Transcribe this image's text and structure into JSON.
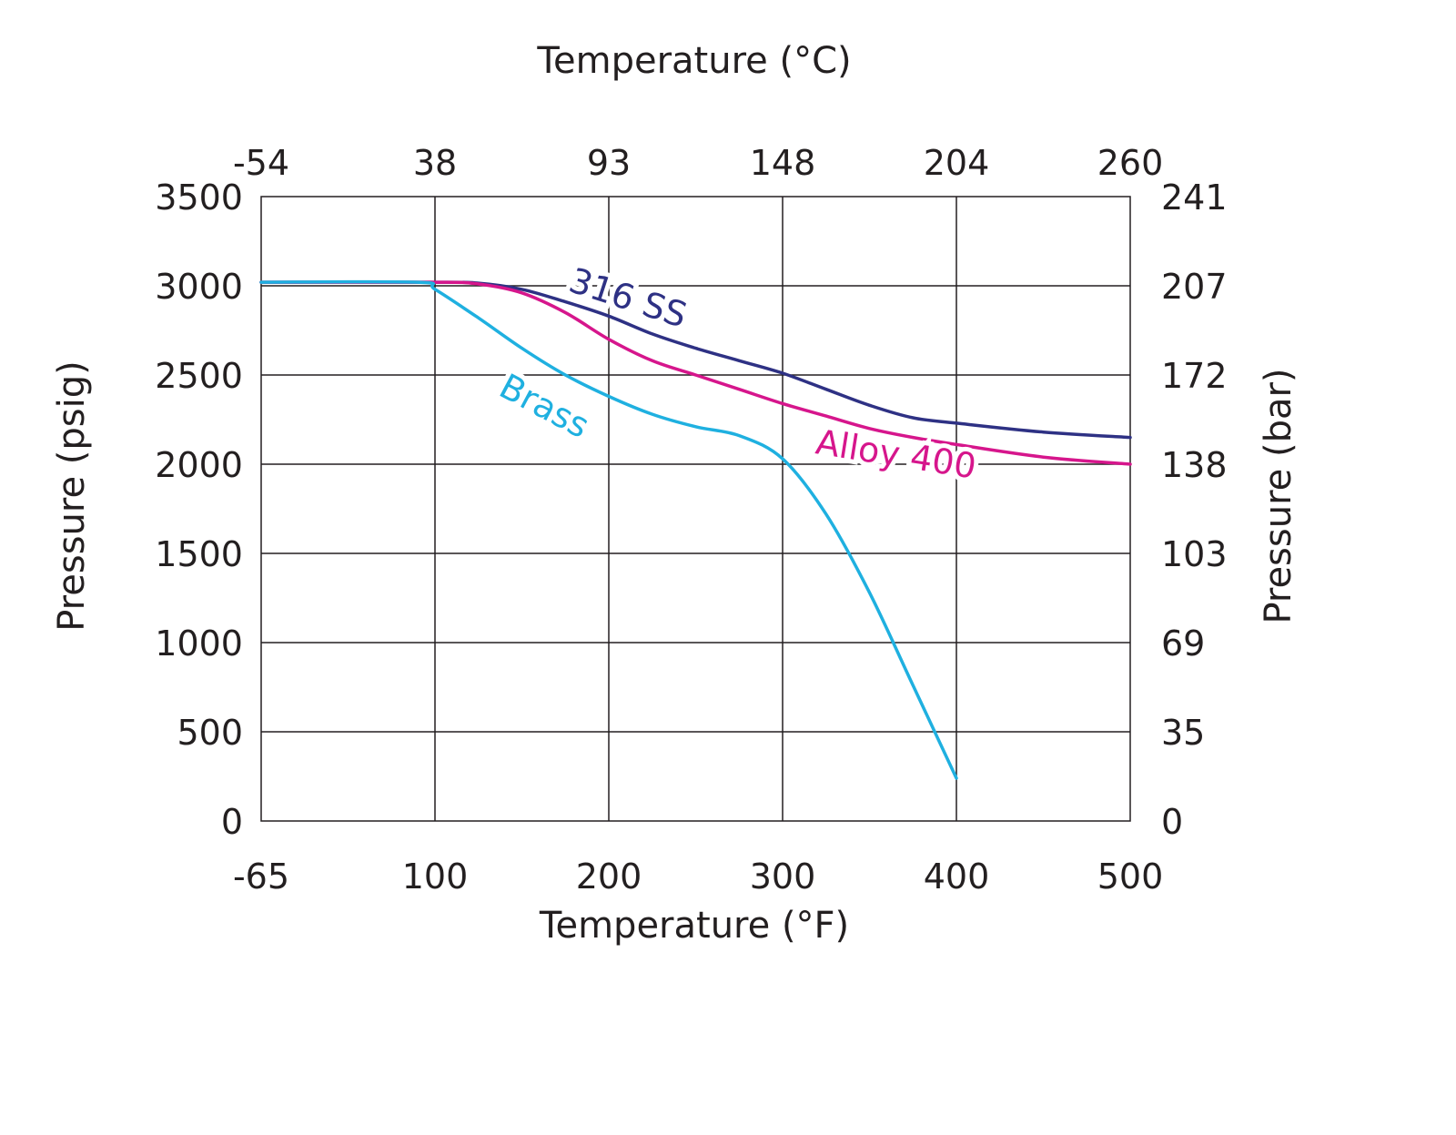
{
  "chart_data": {
    "type": "line",
    "title": "",
    "xlabel": "Temperature (°F)",
    "x2label": "Temperature (°C)",
    "ylabel": "Pressure (psig)",
    "y2label": "Pressure (bar)",
    "xlim": [
      0,
      5
    ],
    "ylim": [
      0,
      3500
    ],
    "x_ticks": [
      "-65",
      "100",
      "200",
      "300",
      "400",
      "500"
    ],
    "x2_ticks": [
      "-54",
      "38",
      "93",
      "148",
      "204",
      "260"
    ],
    "y_ticks": [
      0,
      500,
      1000,
      1500,
      2000,
      2500,
      3000,
      3500
    ],
    "y2_ticks": [
      "0",
      "35",
      "69",
      "103",
      "138",
      "172",
      "207",
      "241"
    ],
    "grid": true,
    "series": [
      {
        "name": "316 SS",
        "color": "#2e3184",
        "x": [
          "-65",
          "100",
          "125",
          "150",
          "175",
          "200",
          "225",
          "250",
          "275",
          "300",
          "325",
          "350",
          "375",
          "400",
          "450",
          "500"
        ],
        "x_pos": [
          0,
          1,
          1.25,
          1.5,
          1.75,
          2,
          2.25,
          2.5,
          2.75,
          3,
          3.25,
          3.5,
          3.75,
          4,
          4.5,
          5
        ],
        "values": [
          3020,
          3020,
          3015,
          2980,
          2910,
          2830,
          2730,
          2650,
          2580,
          2510,
          2420,
          2330,
          2260,
          2230,
          2180,
          2150
        ]
      },
      {
        "name": "Alloy 400",
        "color": "#d6168c",
        "x": [
          "-65",
          "100",
          "125",
          "150",
          "175",
          "200",
          "225",
          "250",
          "275",
          "300",
          "325",
          "350",
          "375",
          "400",
          "450",
          "500"
        ],
        "x_pos": [
          0,
          1,
          1.25,
          1.5,
          1.75,
          2,
          2.25,
          2.5,
          2.75,
          3,
          3.25,
          3.5,
          3.75,
          4,
          4.5,
          5
        ],
        "values": [
          3020,
          3020,
          3010,
          2960,
          2850,
          2700,
          2580,
          2500,
          2420,
          2340,
          2270,
          2200,
          2150,
          2110,
          2040,
          2000
        ]
      },
      {
        "name": "Brass",
        "color": "#1fb0e0",
        "x": [
          "-65",
          "90",
          "100",
          "125",
          "150",
          "175",
          "200",
          "225",
          "250",
          "275",
          "300",
          "325",
          "350",
          "375",
          "400"
        ],
        "x_pos": [
          0,
          0.9,
          1,
          1.25,
          1.5,
          1.75,
          2,
          2.25,
          2.5,
          2.75,
          3,
          3.25,
          3.5,
          3.75,
          4
        ],
        "values": [
          3020,
          3020,
          2980,
          2820,
          2650,
          2500,
          2380,
          2280,
          2210,
          2160,
          2030,
          1720,
          1280,
          760,
          240
        ]
      }
    ]
  }
}
